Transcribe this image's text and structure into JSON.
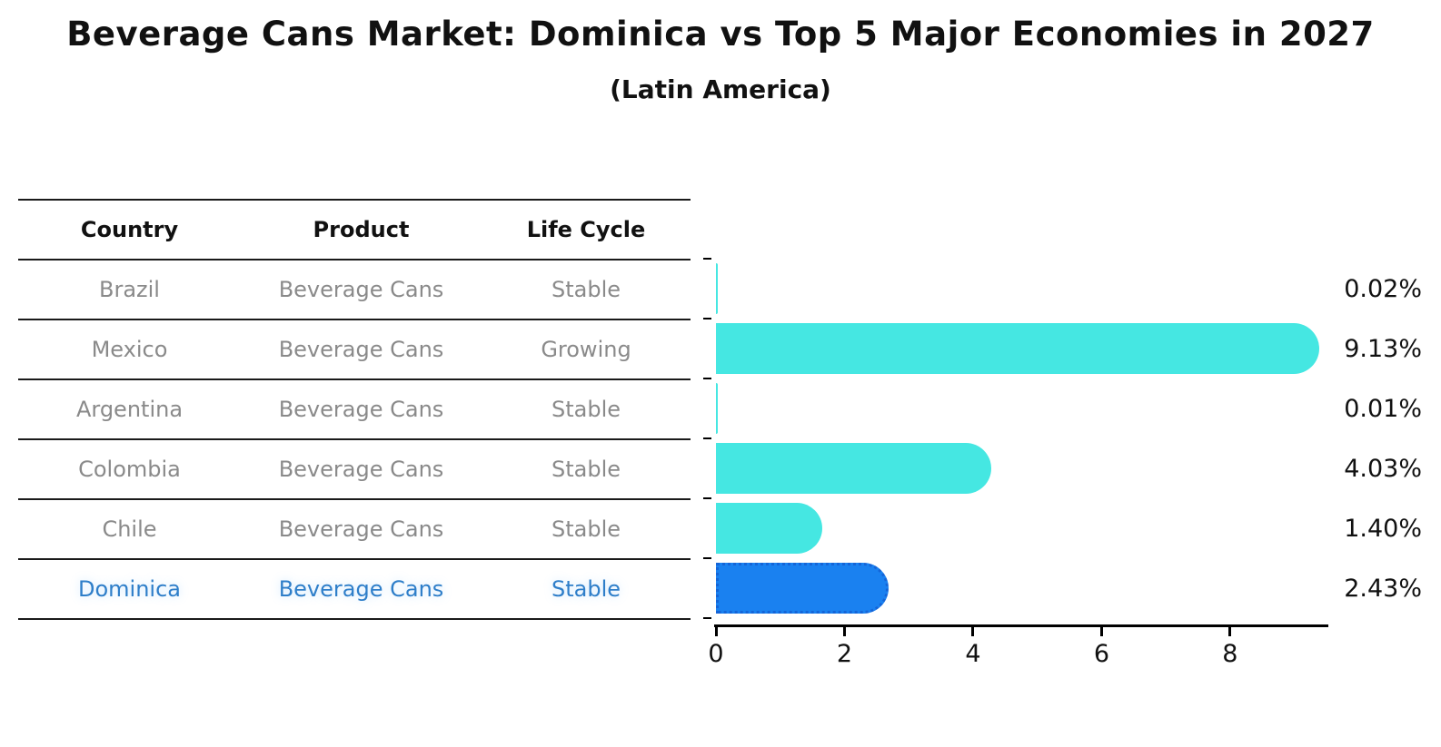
{
  "title": "Beverage Cans Market: Dominica vs Top 5 Major Economies in 2027",
  "subtitle": "(Latin America)",
  "table": {
    "headers": [
      "Country",
      "Product",
      "Life Cycle"
    ],
    "rows": [
      {
        "country": "Brazil",
        "product": "Beverage Cans",
        "life_cycle": "Stable",
        "highlighted": false
      },
      {
        "country": "Mexico",
        "product": "Beverage Cans",
        "life_cycle": "Growing",
        "highlighted": false
      },
      {
        "country": "Argentina",
        "product": "Beverage Cans",
        "life_cycle": "Stable",
        "highlighted": false
      },
      {
        "country": "Colombia",
        "product": "Beverage Cans",
        "life_cycle": "Stable",
        "highlighted": false
      },
      {
        "country": "Chile",
        "product": "Beverage Cans",
        "life_cycle": "Stable",
        "highlighted": false
      },
      {
        "country": "Dominica",
        "product": "Beverage Cans",
        "life_cycle": "Stable",
        "highlighted": true
      }
    ]
  },
  "chart_data": {
    "type": "bar",
    "orientation": "horizontal",
    "title": "Beverage Cans Market: Dominica vs Top 5 Major Economies in 2027",
    "subtitle": "(Latin America)",
    "categories": [
      "Brazil",
      "Mexico",
      "Argentina",
      "Colombia",
      "Chile",
      "Dominica"
    ],
    "values": [
      0.02,
      9.13,
      0.01,
      4.03,
      1.4,
      2.43
    ],
    "value_labels": [
      "0.02%",
      "9.13%",
      "0.01%",
      "4.03%",
      "1.40%",
      "2.43%"
    ],
    "highlight_index": 5,
    "xlabel": "",
    "ylabel": "",
    "xlim": [
      0,
      9.5
    ],
    "xticks": [
      0,
      2,
      4,
      6,
      8
    ],
    "grid": false,
    "legend": false,
    "colors": {
      "bar": "#45E7E2",
      "highlight_bar": "#1A81F0",
      "highlight_border": "#1565D8",
      "highlight_text": "#2E7EC9",
      "table_text": "#8a8a8a",
      "header_text": "#111111",
      "axis": "#000000"
    }
  }
}
